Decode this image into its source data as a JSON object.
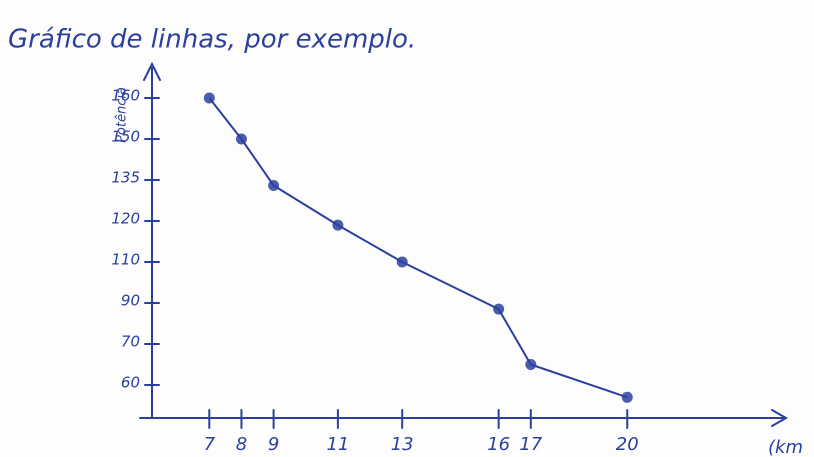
{
  "chart_data": {
    "type": "line",
    "title": "Gráfico de linhas, por exemplo.",
    "ylabel": "Potência",
    "xlabel": "(km",
    "x": [
      7,
      8,
      9,
      11,
      13,
      16,
      17,
      20
    ],
    "series": [
      {
        "name": "Potência",
        "color": "#2b3f9e",
        "values": [
          160,
          150,
          133,
          119,
          110,
          87,
          65,
          57
        ]
      }
    ],
    "xlim": [
      5,
      25
    ],
    "xticks": [
      7,
      8,
      9,
      11,
      13,
      16,
      17,
      20
    ],
    "ylim": [
      52,
      170
    ],
    "yticks": [
      160,
      150,
      135,
      120,
      110,
      90,
      70,
      60
    ]
  }
}
